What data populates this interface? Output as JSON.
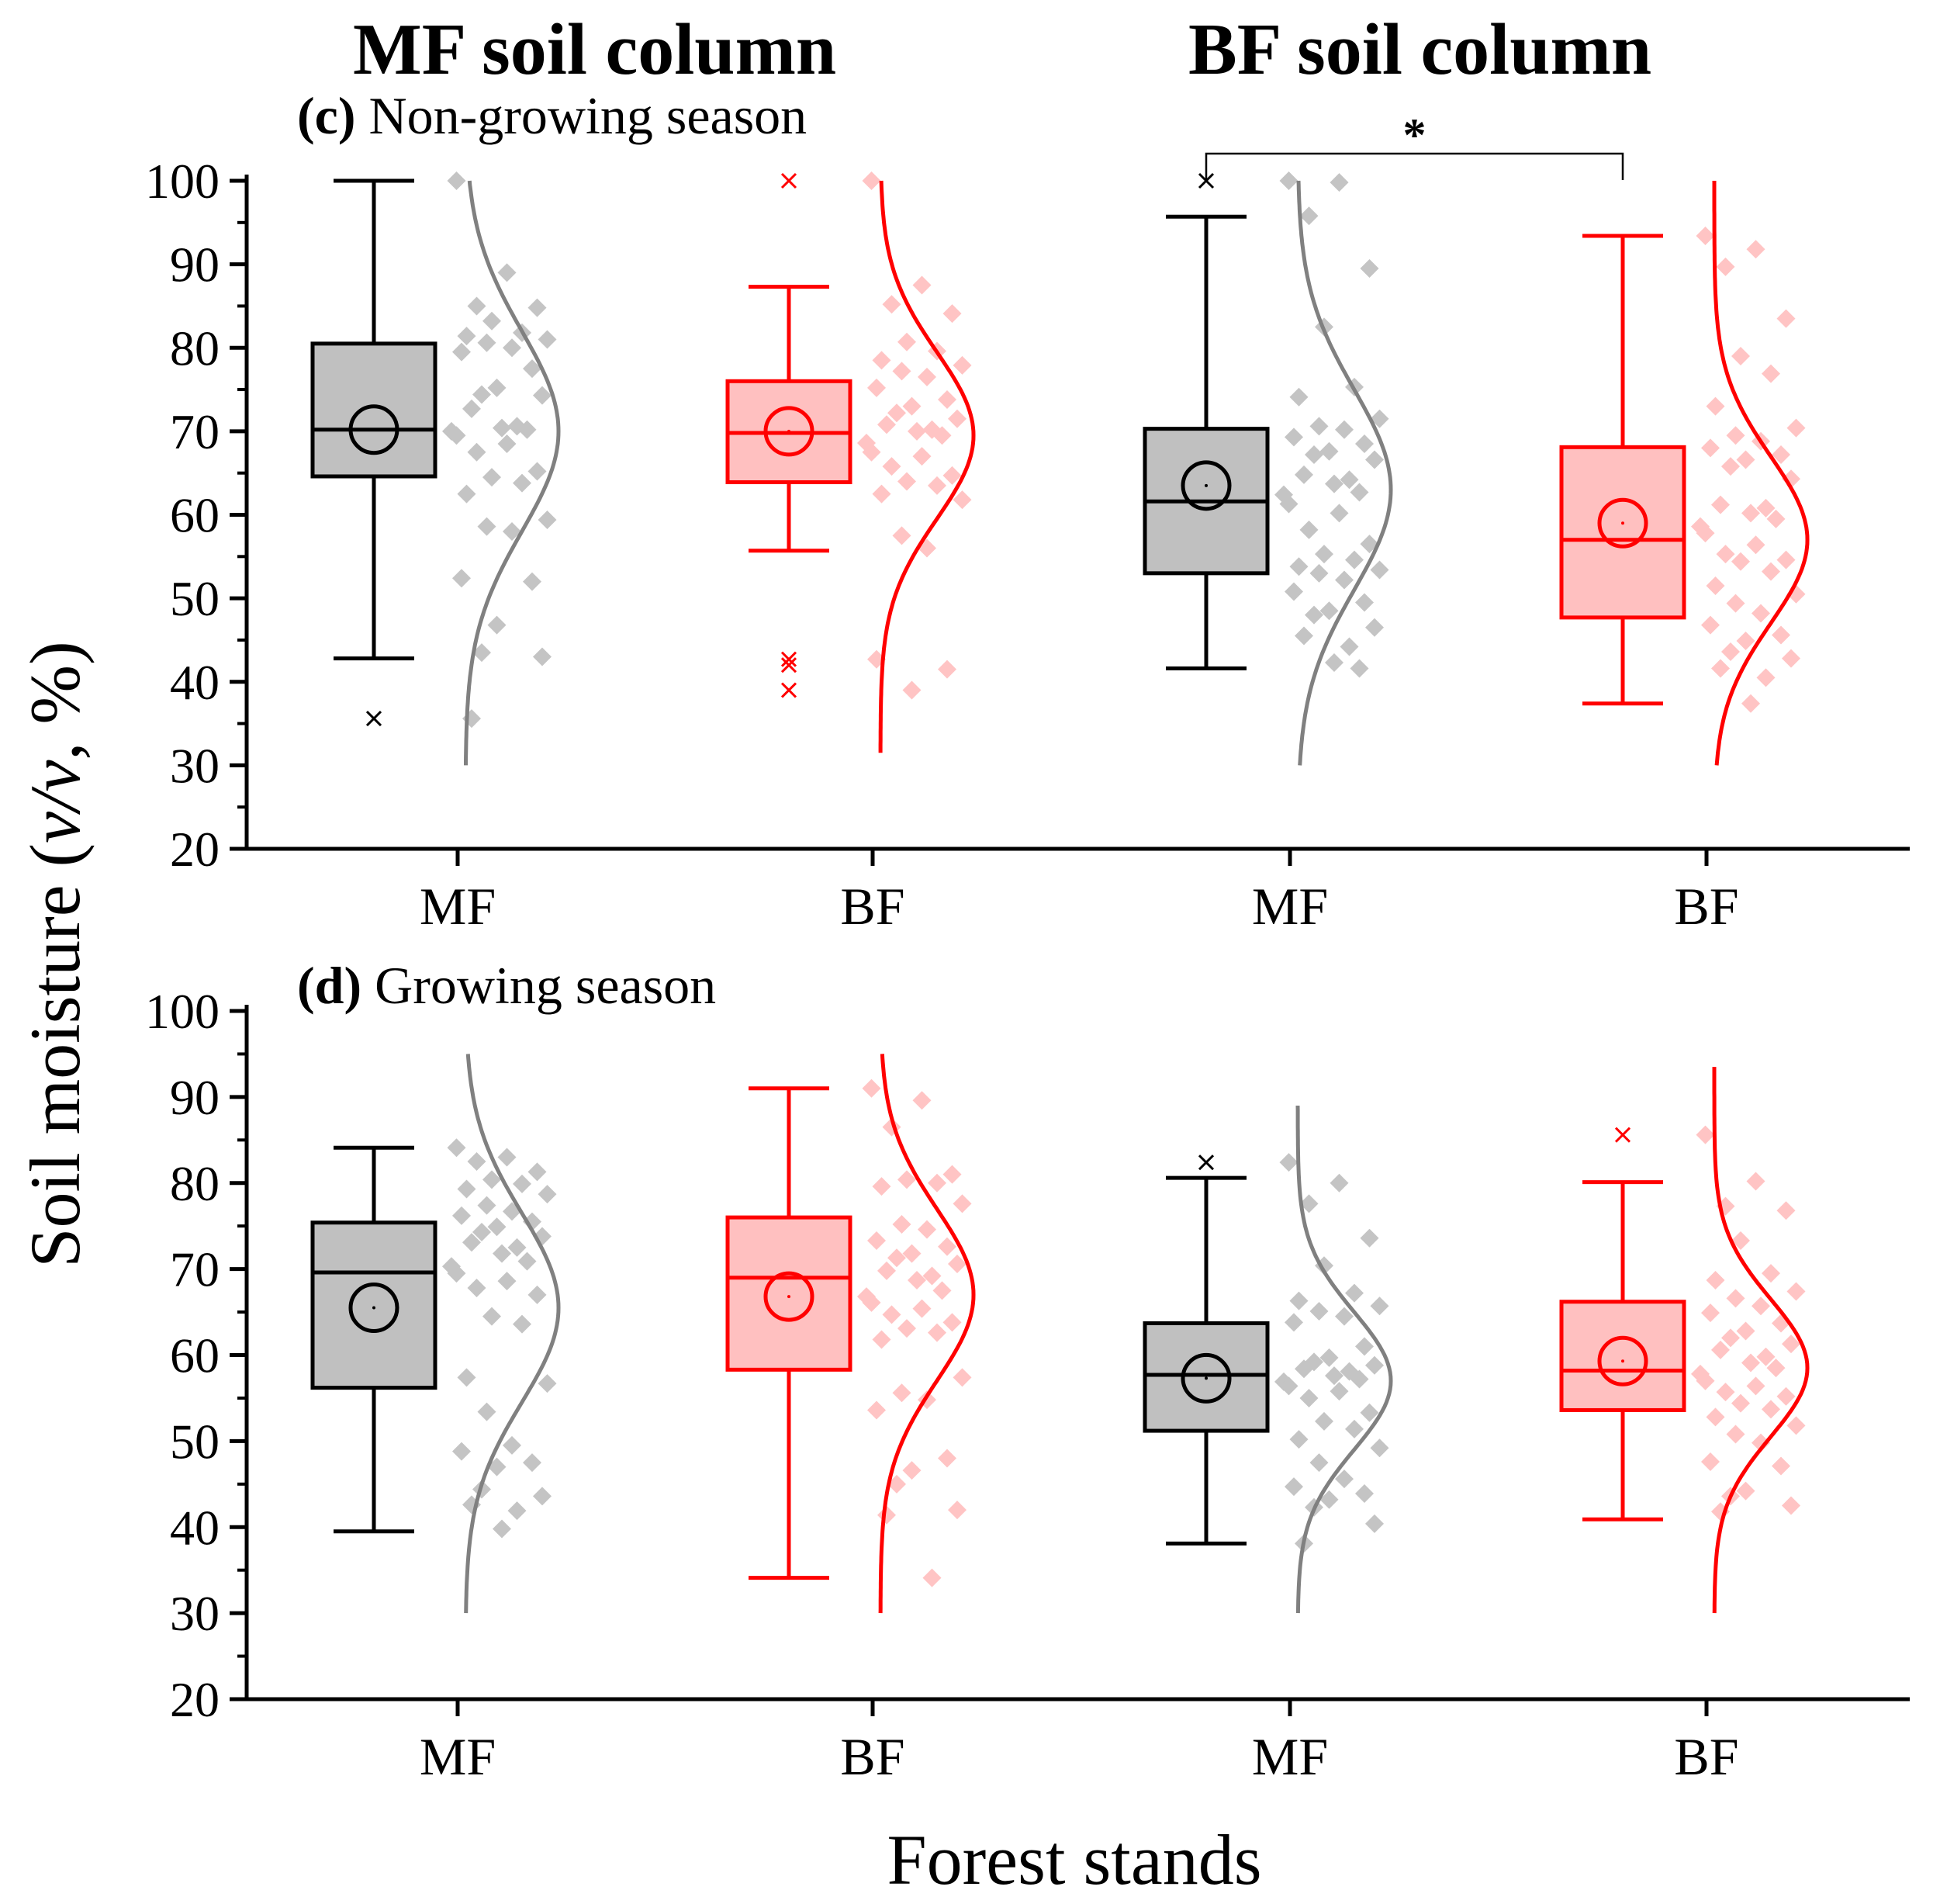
{
  "headers": {
    "left": "MF soil column",
    "right": "BF soil column"
  },
  "y_axis_label": "Soil moisture (v/v, %)",
  "x_axis_label": "Forest stands",
  "colors": {
    "mf_line": "#000000",
    "mf_fill": "#c0c0c0",
    "mf_points": "#c4c4c4",
    "mf_curve": "#808080",
    "bf_line": "#ff0000",
    "bf_fill": "#ffc0c0",
    "bf_points": "#ffc4c4",
    "bf_curve": "#ff0000"
  },
  "chart_data": [
    {
      "type": "box",
      "panel_label": "(c)",
      "title": "Non-growing season",
      "xlabel": "",
      "ylabel": "Soil moisture (v/v, %)",
      "ylim": [
        20,
        100
      ],
      "yticks": [
        20,
        30,
        40,
        50,
        60,
        70,
        80,
        90,
        100
      ],
      "categories": [
        "MF",
        "BF",
        "MF",
        "BF"
      ],
      "significance": {
        "between": [
          2,
          3
        ],
        "label": "*"
      },
      "boxes": [
        {
          "name": "MF",
          "color": "mf",
          "whisker_low": 42.8,
          "q1": 64.6,
          "median": 70.2,
          "q3": 80.5,
          "whisker_high": 100,
          "mean": 70.2,
          "outliers": [
            35.6
          ],
          "points": [
            100,
            89,
            85,
            84.8,
            83.2,
            81.8,
            81.4,
            81,
            80.6,
            80,
            79.5,
            77.5,
            75.2,
            74.4,
            74.3,
            72.7,
            70.6,
            70.4,
            70.2,
            70,
            69.5,
            68.5,
            67.5,
            65.2,
            64.5,
            63.8,
            62.5,
            59.4,
            58.6,
            58,
            52.4,
            52,
            46.8,
            43.5,
            43,
            35.6
          ],
          "curve_range": [
            30,
            100
          ],
          "curve_mean": 70,
          "curve_sd": 12
        },
        {
          "name": "BF",
          "color": "bf",
          "whisker_low": 55.7,
          "q1": 63.9,
          "median": 69.8,
          "q3": 76,
          "whisker_high": 87.3,
          "mean": 70,
          "outliers": [
            100,
            42.7,
            42,
            39
          ],
          "points": [
            100,
            87.5,
            85.2,
            84.1,
            80.7,
            79.6,
            78.5,
            77.9,
            77.2,
            76.5,
            75.2,
            73.8,
            73,
            72.2,
            71.5,
            70.8,
            70.2,
            70,
            69.5,
            68.6,
            67.5,
            67,
            65.8,
            64.7,
            64,
            63.5,
            62.5,
            61.8,
            57.5,
            56,
            42.7,
            41.5,
            39
          ],
          "curve_range": [
            31.5,
            100
          ],
          "curve_mean": 69.5,
          "curve_sd": 10
        },
        {
          "name": "MF",
          "color": "mf",
          "whisker_low": 41.6,
          "q1": 53,
          "median": 61.6,
          "q3": 70.3,
          "whisker_high": 95.7,
          "mean": 63.5,
          "outliers": [
            100
          ],
          "points": [
            100,
            99.8,
            95.8,
            89.5,
            82.5,
            75.3,
            74.1,
            71.5,
            70.6,
            70.2,
            69.3,
            68.5,
            67.6,
            67.2,
            66.6,
            64.8,
            64.2,
            63.7,
            62.7,
            62.4,
            61.3,
            60.2,
            58.2,
            56.5,
            55.3,
            54.6,
            53.8,
            53.4,
            53,
            52.2,
            50.8,
            49.5,
            48.5,
            48,
            46.5,
            45.5,
            44.2,
            42.3,
            41.6
          ],
          "curve_range": [
            30,
            100
          ],
          "curve_mean": 63,
          "curve_sd": 12
        },
        {
          "name": "BF",
          "color": "bf",
          "whisker_low": 37.4,
          "q1": 47.7,
          "median": 57,
          "q3": 68.1,
          "whisker_high": 93.4,
          "mean": 59,
          "outliers": [],
          "points": [
            93.4,
            91.8,
            89.7,
            83.5,
            79,
            76.9,
            73,
            70.4,
            69.5,
            68.8,
            68,
            67.2,
            66.6,
            65.8,
            64.3,
            61.2,
            60.8,
            60.2,
            59.5,
            58.6,
            57.8,
            56.4,
            55.3,
            54.6,
            54.4,
            53.2,
            51.5,
            50.5,
            49.4,
            48.2,
            46.8,
            45.6,
            44.9,
            43.6,
            42.8,
            41.6,
            40.5,
            37.4
          ],
          "curve_range": [
            30,
            100
          ],
          "curve_mean": 57,
          "curve_sd": 10
        }
      ]
    },
    {
      "type": "box",
      "panel_label": "(d)",
      "title": "Growing season",
      "xlabel": "Forest stands",
      "ylabel": "Soil moisture (v/v, %)",
      "ylim": [
        20,
        100
      ],
      "yticks": [
        20,
        30,
        40,
        50,
        60,
        70,
        80,
        90,
        100
      ],
      "categories": [
        "MF",
        "BF",
        "MF",
        "BF"
      ],
      "boxes": [
        {
          "name": "MF",
          "color": "mf",
          "whisker_low": 39.5,
          "q1": 56.2,
          "median": 69.6,
          "q3": 75.4,
          "whisker_high": 84.1,
          "mean": 65.5,
          "outliers": [],
          "points": [
            84.1,
            83,
            82.5,
            81.3,
            80.4,
            79.9,
            79.3,
            78.7,
            77.4,
            76.7,
            76.2,
            75.5,
            74.9,
            74.3,
            73.8,
            73.1,
            72.5,
            71.8,
            70.9,
            70.3,
            69.5,
            68.6,
            67.8,
            67,
            64.5,
            63.6,
            57.4,
            56.7,
            53.4,
            49.5,
            48.8,
            47.5,
            47,
            44.4,
            43.6,
            42.6,
            41.9,
            39.8
          ],
          "curve_range": [
            30,
            95
          ],
          "curve_mean": 65.5,
          "curve_sd": 11
        },
        {
          "name": "BF",
          "color": "bf",
          "whisker_low": 34.1,
          "q1": 58.3,
          "median": 69,
          "q3": 76,
          "whisker_high": 91,
          "mean": 66.8,
          "outliers": [],
          "points": [
            91,
            89.6,
            86.5,
            81,
            80.4,
            80,
            79.6,
            77.6,
            75.2,
            74.6,
            73.3,
            72.6,
            71.8,
            71.3,
            70.6,
            69.8,
            69.2,
            68.7,
            67.5,
            66.8,
            66.1,
            65.4,
            64.7,
            63.8,
            63.1,
            62.6,
            61.8,
            57.4,
            55.6,
            54.8,
            53.6,
            48,
            46.6,
            45,
            42,
            41.4,
            34.1
          ],
          "curve_range": [
            30,
            95
          ],
          "curve_mean": 67,
          "curve_sd": 10
        },
        {
          "name": "MF",
          "color": "mf",
          "whisker_low": 38.1,
          "q1": 51.2,
          "median": 57.7,
          "q3": 63.7,
          "whisker_high": 80.6,
          "mean": 57.3,
          "outliers": [
            82.4
          ],
          "points": [
            82.4,
            80,
            77.6,
            73.6,
            70.4,
            67.2,
            66.3,
            65.7,
            65.1,
            64.5,
            63.8,
            61,
            59.7,
            59.2,
            58.8,
            58.4,
            58.1,
            57.6,
            57.2,
            56.9,
            56.4,
            55.8,
            55,
            53.3,
            52.3,
            51.4,
            50.2,
            49.2,
            47.5,
            45.6,
            44.7,
            43.9,
            43.2,
            42.3,
            40.4,
            38.1
          ],
          "curve_range": [
            30,
            89
          ],
          "curve_mean": 57,
          "curve_sd": 8
        },
        {
          "name": "BF",
          "color": "bf",
          "whisker_low": 40.9,
          "q1": 53.6,
          "median": 58.2,
          "q3": 66.2,
          "whisker_high": 80.1,
          "mean": 59.3,
          "outliers": [
            85.6
          ],
          "points": [
            85.6,
            80.2,
            77.3,
            76.8,
            73.3,
            69.5,
            68.7,
            67.4,
            66.6,
            65.7,
            64.9,
            63.7,
            62.8,
            62,
            61.3,
            60.6,
            59.8,
            59.1,
            58.5,
            57.8,
            57,
            56.4,
            55.7,
            55.2,
            54.4,
            53.7,
            52.8,
            51.8,
            50.8,
            49.8,
            47.6,
            47.1,
            44.2,
            43.6,
            42.5,
            41.8
          ],
          "curve_range": [
            30,
            93.5
          ],
          "curve_mean": 58.5,
          "curve_sd": 8
        }
      ]
    }
  ]
}
